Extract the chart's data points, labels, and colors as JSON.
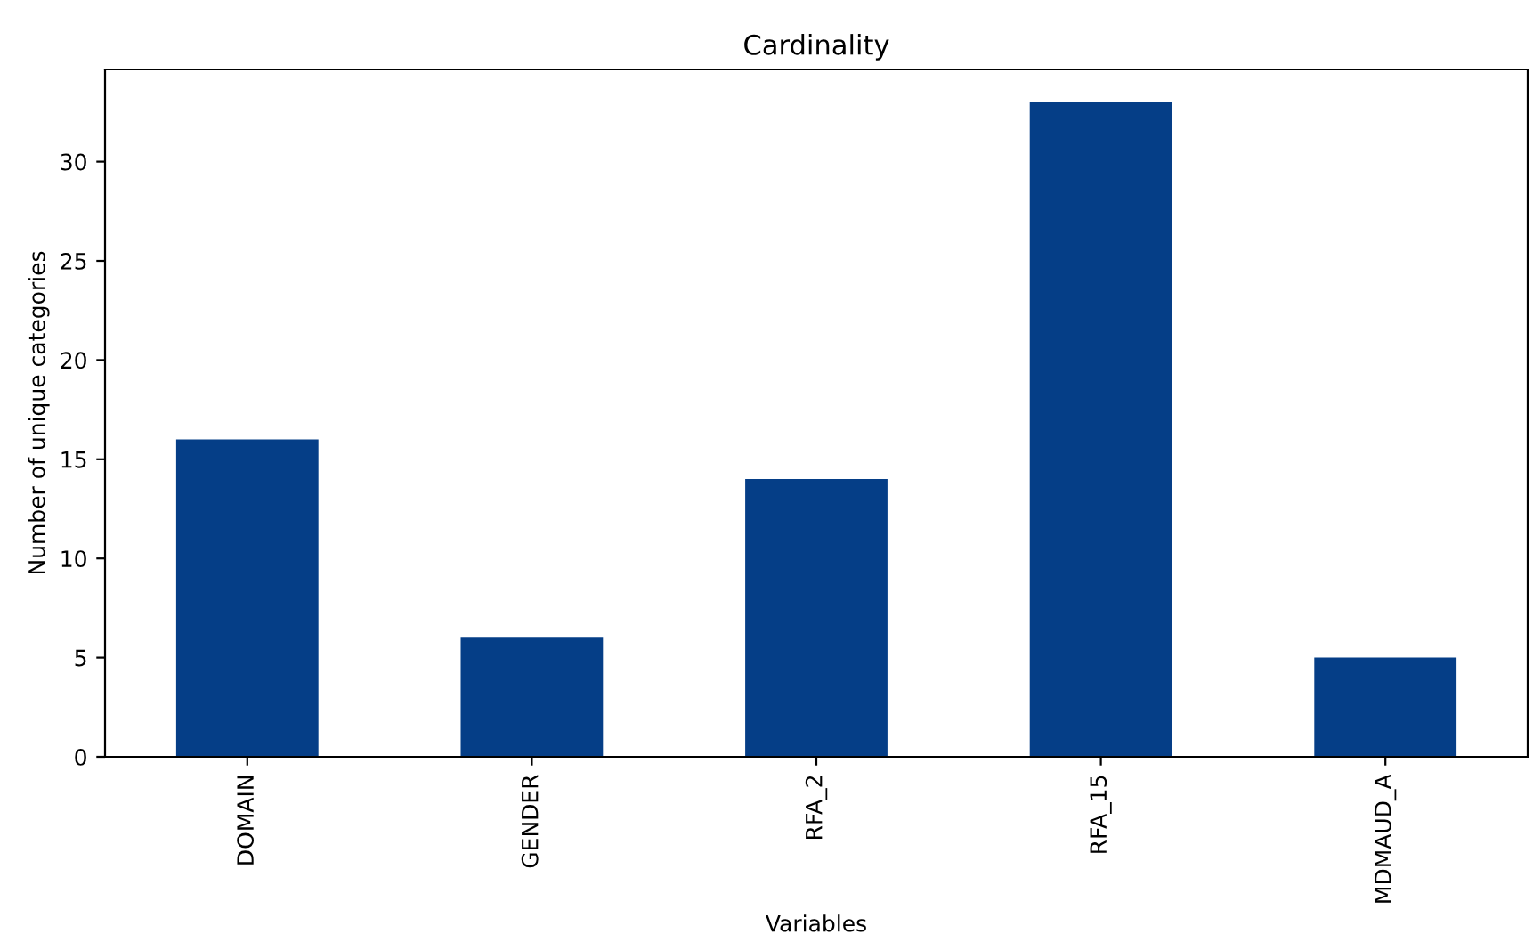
{
  "chart_data": {
    "type": "bar",
    "title": "Cardinality",
    "xlabel": "Variables",
    "ylabel": "Number of unique categories",
    "categories": [
      "DOMAIN",
      "GENDER",
      "RFA_2",
      "RFA_15",
      "MDMAUD_A"
    ],
    "values": [
      16,
      6,
      14,
      33,
      5
    ],
    "color": "#053e87",
    "ylim": [
      0,
      34.65
    ],
    "yticks": [
      0,
      5,
      10,
      15,
      20,
      25,
      30
    ],
    "grid": false,
    "legend": false
  }
}
